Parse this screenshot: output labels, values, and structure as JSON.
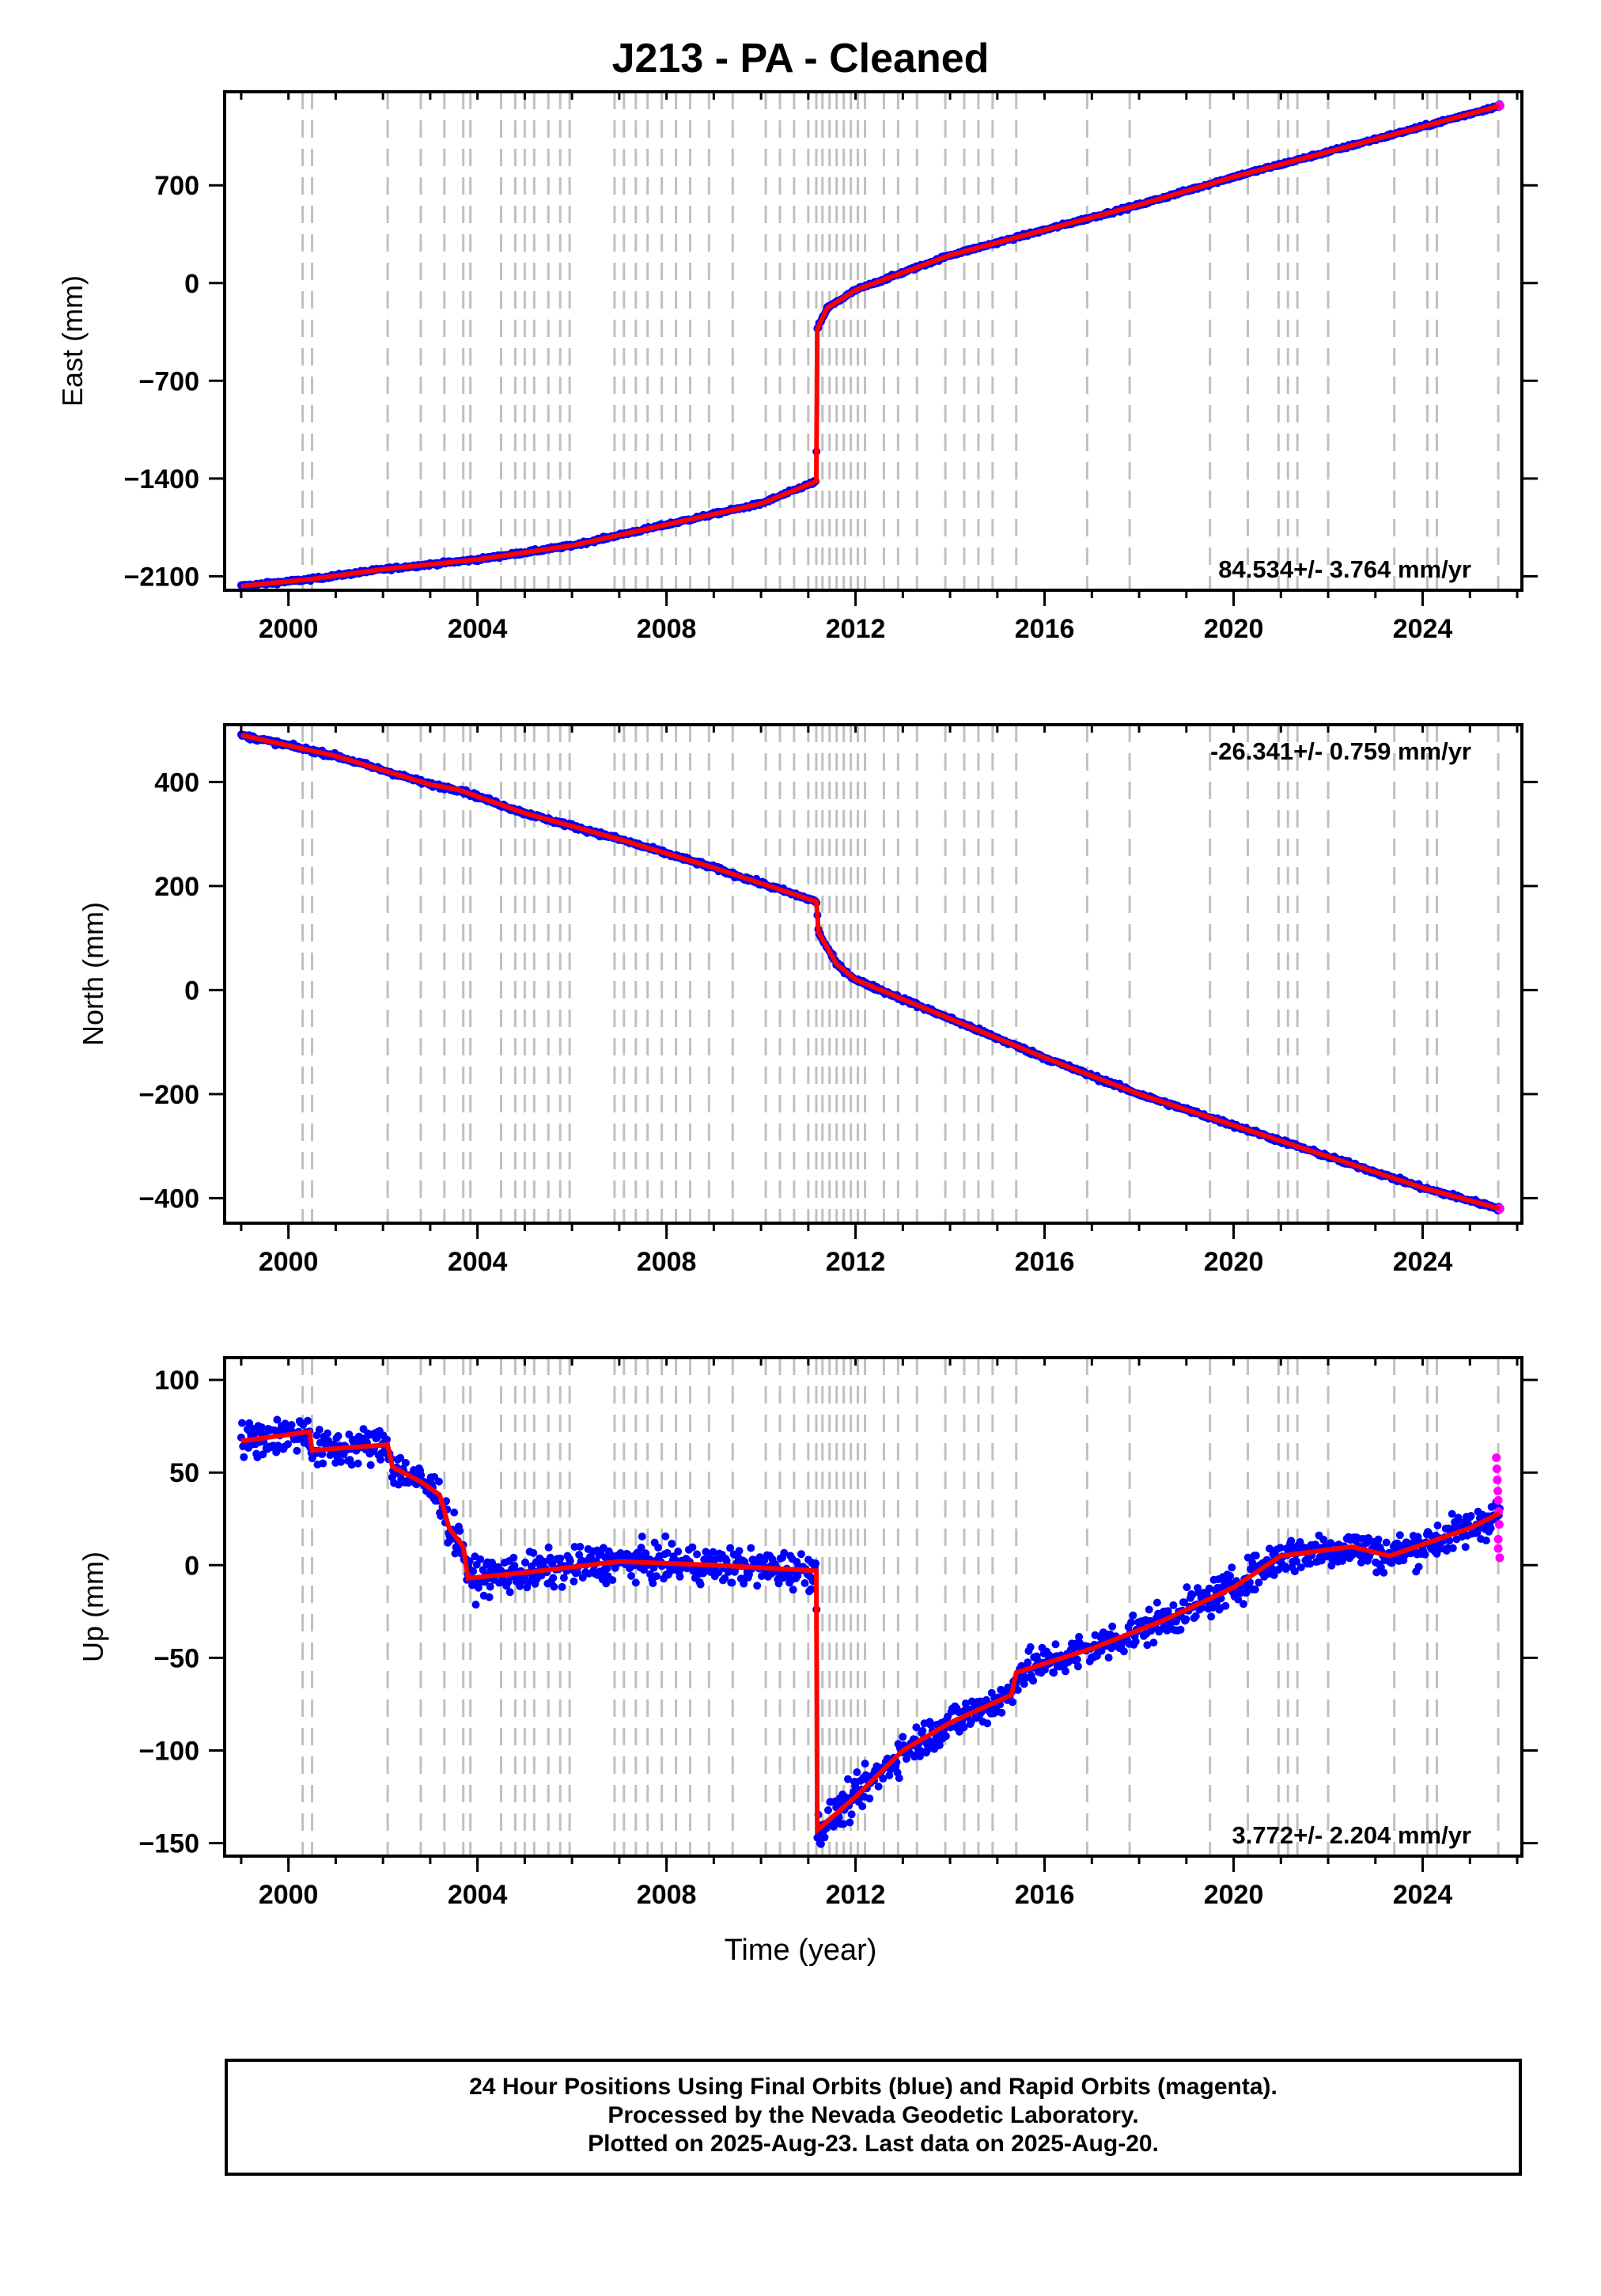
{
  "title": "J213  - PA - Cleaned",
  "xlabel": "Time (year)",
  "footer": {
    "line1": "24 Hour Positions Using Final Orbits (blue) and Rapid Orbits (magenta).",
    "line2": "Processed by the Nevada Geodetic Laboratory.",
    "line3": "Plotted on 2025-Aug-23. Last data on 2025-Aug-20."
  },
  "colors": {
    "final_orbits": "#0000ff",
    "rapid_orbits": "#ff00ff",
    "model": "#ff0000",
    "event_lines": "#c0c0c0"
  },
  "chart_data": [
    {
      "type": "scatter",
      "component": "east",
      "ylabel": "East (mm)",
      "xlim": [
        1998.65,
        2026.1
      ],
      "ylim": [
        -2200,
        1370
      ],
      "xticks": [
        2000,
        2004,
        2008,
        2012,
        2016,
        2020,
        2024
      ],
      "xtick_labels": [
        "2000",
        "2004",
        "2008",
        "2012",
        "2016",
        "2020",
        "2024"
      ],
      "yticks": [
        -2100,
        -1400,
        -700,
        0,
        700
      ],
      "ytick_labels": [
        "-2100",
        "-1400",
        "-700",
        "0",
        "700"
      ],
      "rate_label": "84.534+/- 3.764 mm/yr",
      "rate_label_position": "bottom-right",
      "model_breakpoints": [
        [
          1999.0,
          -2170
        ],
        [
          2000.5,
          -2120
        ],
        [
          2002.0,
          -2050
        ],
        [
          2004.0,
          -1980
        ],
        [
          2006.0,
          -1880
        ],
        [
          2008.0,
          -1730
        ],
        [
          2010.0,
          -1580
        ],
        [
          2011.17,
          -1420
        ],
        [
          2011.19,
          -330
        ],
        [
          2011.4,
          -180
        ],
        [
          2012.0,
          -50
        ],
        [
          2014.0,
          200
        ],
        [
          2016.0,
          380
        ],
        [
          2018.0,
          560
        ],
        [
          2020.0,
          760
        ],
        [
          2022.0,
          940
        ],
        [
          2024.0,
          1120
        ],
        [
          2025.63,
          1270
        ]
      ],
      "noise_mm": 8
    },
    {
      "type": "scatter",
      "component": "north",
      "ylabel": "North (mm)",
      "xlim": [
        1998.65,
        2026.1
      ],
      "ylim": [
        -448,
        510
      ],
      "xticks": [
        2000,
        2004,
        2008,
        2012,
        2016,
        2020,
        2024
      ],
      "xtick_labels": [
        "2000",
        "2004",
        "2008",
        "2012",
        "2016",
        "2020",
        "2024"
      ],
      "yticks": [
        -400,
        -200,
        0,
        200,
        400
      ],
      "ytick_labels": [
        "-400",
        "-200",
        "0",
        "200",
        "400"
      ],
      "rate_label": "-26.341+/- 0.759 mm/yr",
      "rate_label_position": "top-right",
      "model_breakpoints": [
        [
          1999.0,
          490
        ],
        [
          2001.0,
          450
        ],
        [
          2003.0,
          395
        ],
        [
          2003.6,
          385
        ],
        [
          2005.0,
          340
        ],
        [
          2007.0,
          290
        ],
        [
          2009.0,
          235
        ],
        [
          2011.17,
          170
        ],
        [
          2011.22,
          110
        ],
        [
          2011.6,
          50
        ],
        [
          2012.0,
          20
        ],
        [
          2014.0,
          -55
        ],
        [
          2016.0,
          -130
        ],
        [
          2018.0,
          -200
        ],
        [
          2020.0,
          -260
        ],
        [
          2022.0,
          -320
        ],
        [
          2024.0,
          -380
        ],
        [
          2025.63,
          -420
        ]
      ],
      "noise_mm": 3
    },
    {
      "type": "scatter",
      "component": "up",
      "ylabel": "Up (mm)",
      "xlim": [
        1998.65,
        2026.1
      ],
      "ylim": [
        -157,
        112
      ],
      "xticks": [
        2000,
        2004,
        2008,
        2012,
        2016,
        2020,
        2024
      ],
      "xtick_labels": [
        "2000",
        "2004",
        "2008",
        "2012",
        "2016",
        "2020",
        "2024"
      ],
      "yticks": [
        -150,
        -100,
        -50,
        0,
        50,
        100
      ],
      "ytick_labels": [
        "-150",
        "-100",
        "-50",
        "0",
        "50",
        "100"
      ],
      "rate_label": "3.772+/- 2.204 mm/yr",
      "rate_label_position": "bottom-right",
      "model_breakpoints": [
        [
          1999.0,
          67
        ],
        [
          2000.45,
          72
        ],
        [
          2000.5,
          62
        ],
        [
          2002.1,
          65
        ],
        [
          2002.2,
          53
        ],
        [
          2002.8,
          45
        ],
        [
          2003.2,
          38
        ],
        [
          2003.4,
          20
        ],
        [
          2003.7,
          10
        ],
        [
          2003.8,
          -7
        ],
        [
          2005.0,
          -4
        ],
        [
          2007.0,
          2
        ],
        [
          2009.0,
          0
        ],
        [
          2011.17,
          -3
        ],
        [
          2011.19,
          -143
        ],
        [
          2012.0,
          -125
        ],
        [
          2013.0,
          -100
        ],
        [
          2014.0,
          -85
        ],
        [
          2015.3,
          -70
        ],
        [
          2015.4,
          -58
        ],
        [
          2017.0,
          -45
        ],
        [
          2018.5,
          -30
        ],
        [
          2020.0,
          -12
        ],
        [
          2021.0,
          5
        ],
        [
          2022.5,
          10
        ],
        [
          2023.3,
          5
        ],
        [
          2025.0,
          20
        ],
        [
          2025.63,
          28
        ]
      ],
      "noise_mm": 7,
      "rapid_orbit_points": [
        [
          2025.56,
          58
        ],
        [
          2025.57,
          52
        ],
        [
          2025.58,
          46
        ],
        [
          2025.59,
          40
        ],
        [
          2025.6,
          35
        ],
        [
          2025.61,
          29
        ],
        [
          2025.62,
          22
        ],
        [
          2025.6,
          14
        ],
        [
          2025.6,
          9
        ],
        [
          2025.63,
          4
        ]
      ]
    }
  ],
  "event_line_years": [
    2000.3,
    2000.5,
    2002.1,
    2002.8,
    2003.3,
    2003.7,
    2003.85,
    2004.5,
    2004.8,
    2005.0,
    2005.2,
    2005.5,
    2005.75,
    2005.95,
    2006.9,
    2007.1,
    2007.35,
    2007.6,
    2007.9,
    2008.2,
    2008.5,
    2008.9,
    2009.4,
    2010.1,
    2010.4,
    2010.7,
    2011.0,
    2011.17,
    2011.3,
    2011.45,
    2011.6,
    2011.75,
    2011.9,
    2012.05,
    2012.2,
    2012.6,
    2012.9,
    2013.3,
    2013.9,
    2014.3,
    2014.6,
    2014.9,
    2015.4,
    2016.9,
    2017.8,
    2019.5,
    2020.3,
    2020.95,
    2021.15,
    2021.35,
    2022.0,
    2023.4,
    2024.1,
    2024.3,
    2025.6
  ]
}
